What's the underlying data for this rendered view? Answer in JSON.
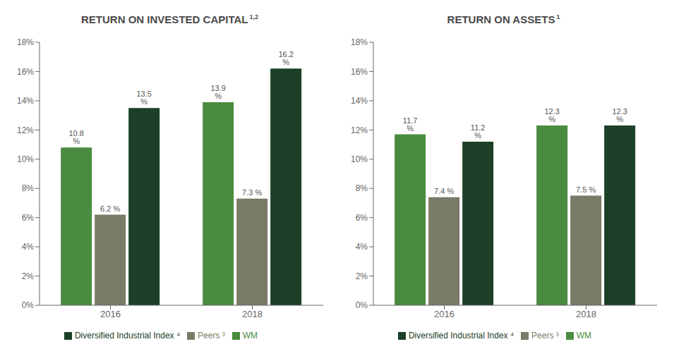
{
  "chart_data": [
    {
      "type": "bar",
      "title": "RETURN ON INVESTED CAPITAL",
      "annotations": [
        "1,2"
      ],
      "categories": [
        "2016",
        "2018"
      ],
      "series": [
        {
          "name": "WM",
          "color": "#4a8c3f",
          "values": [
            10.8,
            13.9
          ],
          "value_labels": [
            "10.8 %",
            "13.9 %"
          ]
        },
        {
          "name": "Peers ³",
          "color": "#7a7a68",
          "values": [
            6.2,
            7.3
          ],
          "value_labels": [
            "6.2 %",
            "7.3 %"
          ]
        },
        {
          "name": "Diversified Industrial Index ⁴",
          "color": "#1b4027",
          "values": [
            13.5,
            16.2
          ],
          "value_labels": [
            "13.5 %",
            "16.2 %"
          ]
        }
      ],
      "ylim": [
        0,
        18
      ],
      "yticks": [
        {
          "value": 0,
          "label": "0%"
        },
        {
          "value": 2,
          "label": "2%"
        },
        {
          "value": 4,
          "label": "4%"
        },
        {
          "value": 6,
          "label": "6%"
        },
        {
          "value": 8,
          "label": "8%"
        },
        {
          "value": 10,
          "label": "10%"
        },
        {
          "value": 12,
          "label": "12%"
        },
        {
          "value": 14,
          "label": "14%"
        },
        {
          "value": 16,
          "label": "16%"
        },
        {
          "value": 18,
          "label": "18%"
        }
      ],
      "data_labels": true,
      "grid": false,
      "legend": "bottom"
    },
    {
      "type": "bar",
      "title": "RETURN ON ASSETS",
      "annotations": [
        "1"
      ],
      "categories": [
        "2016",
        "2018"
      ],
      "series": [
        {
          "name": "WM",
          "color": "#4a8c3f",
          "values": [
            11.7,
            12.3
          ],
          "value_labels": [
            "11.7 %",
            "12.3 %"
          ]
        },
        {
          "name": "Peers ³",
          "color": "#7a7a68",
          "values": [
            7.4,
            7.5
          ],
          "value_labels": [
            "7.4 %",
            "7.5 %"
          ]
        },
        {
          "name": "Diversified Industrial Index ⁴",
          "color": "#1b4027",
          "values": [
            11.2,
            12.3
          ],
          "value_labels": [
            "11.2 %",
            "12.3 %"
          ]
        }
      ],
      "ylim": [
        0,
        18
      ],
      "yticks": [
        {
          "value": 0,
          "label": "0%"
        },
        {
          "value": 2,
          "label": "2%"
        },
        {
          "value": 4,
          "label": "4%"
        },
        {
          "value": 6,
          "label": "6%"
        },
        {
          "value": 8,
          "label": "8%"
        },
        {
          "value": 10,
          "label": "10%"
        },
        {
          "value": 12,
          "label": "12%"
        },
        {
          "value": 14,
          "label": "14%"
        },
        {
          "value": 16,
          "label": "16%"
        },
        {
          "value": 18,
          "label": "18%"
        }
      ],
      "data_labels": true,
      "grid": false,
      "legend": "bottom"
    }
  ]
}
